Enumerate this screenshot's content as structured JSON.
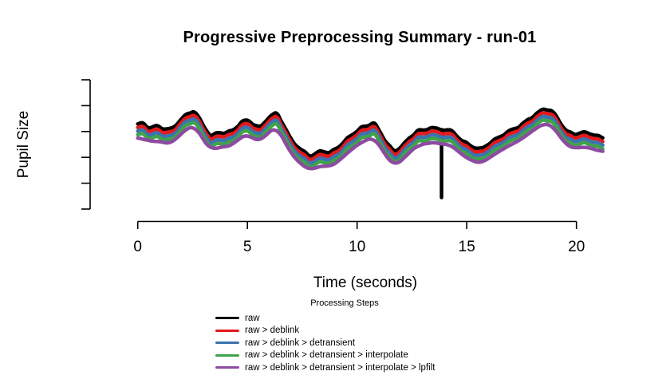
{
  "figure": {
    "title": "Progressive Preprocessing Summary - run-01",
    "x_label": "Time (seconds)",
    "y_label": "Pupil Size"
  },
  "chart_data": {
    "type": "line",
    "title": "Progressive Preprocessing Summary - run-01",
    "xlabel": "Time (seconds)",
    "ylabel": "Pupil Size",
    "xlim": [
      0,
      21.3
    ],
    "ylim": [
      0,
      100
    ],
    "x_ticks": [
      0,
      5,
      10,
      15,
      20
    ],
    "y_axis": {
      "tick_count": 6,
      "tick_labels_shown": false
    },
    "grid": false,
    "legend": {
      "title": "Processing Steps",
      "position": "bottom"
    },
    "base_trace": {
      "t": [
        0,
        0.2,
        0.55,
        0.9,
        1.25,
        1.55,
        1.85,
        2.15,
        2.4,
        2.6,
        2.9,
        3.35,
        3.65,
        4.0,
        4.35,
        4.8,
        5.05,
        5.35,
        5.6,
        5.85,
        6.35,
        6.7,
        6.95,
        7.4,
        7.9,
        8.4,
        8.75,
        9.25,
        9.7,
        10.2,
        10.5,
        10.75,
        11.3,
        11.7,
        12.15,
        12.5,
        12.8,
        13.0,
        13.35,
        13.7,
        14.2,
        14.45,
        14.8,
        15.35,
        15.65,
        16.0,
        16.4,
        16.75,
        17.1,
        17.45,
        17.8,
        18.2,
        18.55,
        18.9,
        19.3,
        19.55,
        19.9,
        20.25,
        20.6,
        20.95,
        21.2
      ],
      "v": [
        76,
        79.5,
        73,
        76,
        72,
        72.5,
        79.5,
        86,
        90,
        91,
        79.5,
        64,
        69.5,
        68,
        71.5,
        80.5,
        82,
        75.5,
        74,
        82,
        90,
        74,
        63,
        51.5,
        44.5,
        50.5,
        47.5,
        56,
        65.5,
        74,
        76,
        80,
        60,
        48.5,
        57.5,
        65.5,
        72,
        70,
        74.5,
        72,
        71.5,
        68,
        60,
        53.5,
        51.5,
        57.5,
        63,
        68,
        72,
        76,
        82,
        88.5,
        93.5,
        91,
        78,
        70,
        67,
        69,
        68,
        65.5,
        62.5
      ]
    },
    "series": [
      {
        "name": "raw",
        "color": "#000000",
        "offset": 0,
        "noise_amp": 1,
        "smooth_window": 5,
        "blink_spike": true
      },
      {
        "name": "raw > deblink",
        "color": "#e3191c",
        "offset": 3.7,
        "noise_amp": 1,
        "smooth_window": 5,
        "blink_spike": false
      },
      {
        "name": "raw > deblink > detransient",
        "color": "#3b73af",
        "offset": 7.4,
        "noise_amp": 1,
        "smooth_window": 5,
        "blink_spike": false
      },
      {
        "name": "raw > deblink > detransient > interpolate",
        "color": "#40a24a",
        "offset": 11.1,
        "noise_amp": 1,
        "smooth_window": 5,
        "blink_spike": false
      },
      {
        "name": "raw > deblink > detransient > interpolate > lpfilt",
        "color": "#8d4ba1",
        "offset": 14.8,
        "noise_amp": 0.15,
        "smooth_window": 13,
        "blink_spike": false
      }
    ],
    "blink_artifact": {
      "t": 13.85,
      "v_bottom": 2
    }
  }
}
